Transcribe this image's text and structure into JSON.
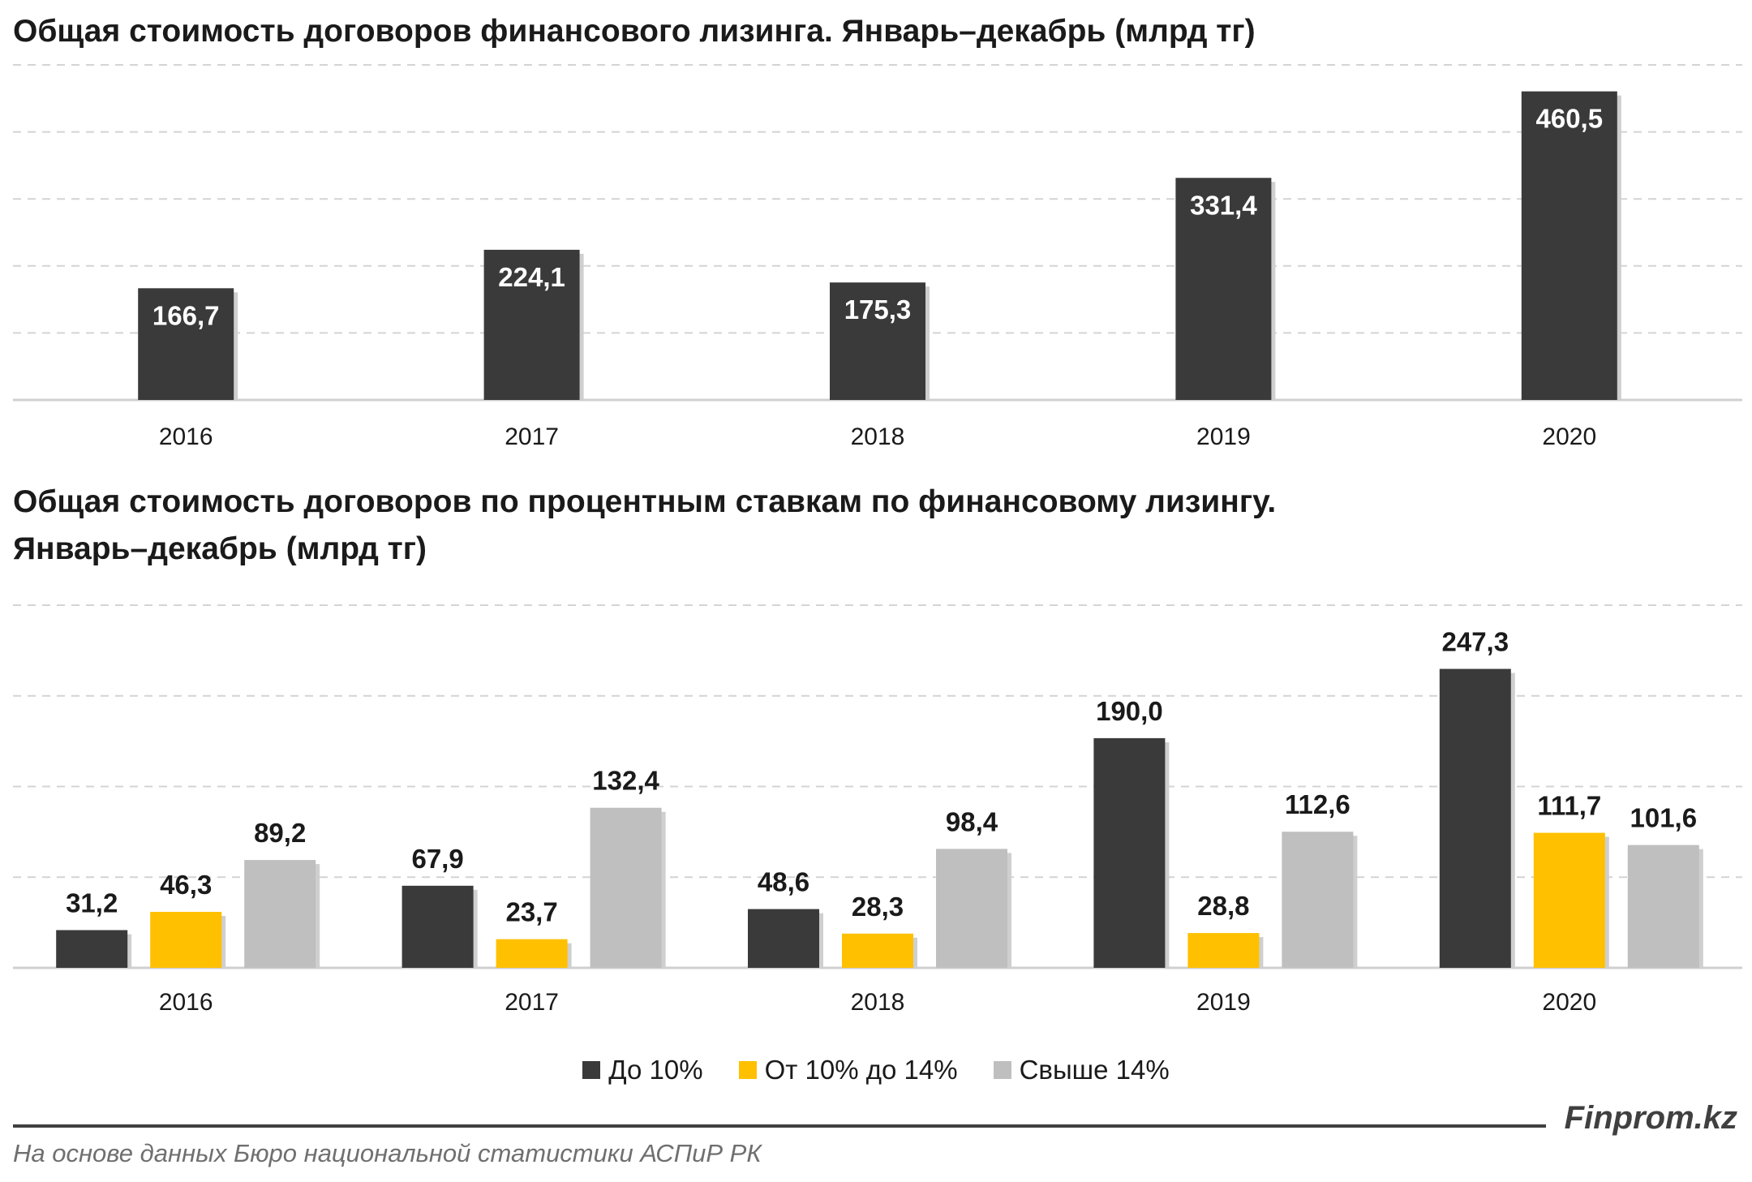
{
  "charts": {
    "top": {
      "title": "Общая стоимость договоров финансового лизинга. Январь–декабрь (млрд тг)"
    },
    "bottom": {
      "title_line1": "Общая стоимость договоров по процентным ставкам по финансовому лизингу.",
      "title_line2": "Январь–декабрь (млрд тг)"
    }
  },
  "legend": {
    "items": [
      {
        "label": "До 10%",
        "color": "#3a3a3a"
      },
      {
        "label": "От 10% до 14%",
        "color": "#ffc000"
      },
      {
        "label": "Свыше 14%",
        "color": "#bfbfbf"
      }
    ]
  },
  "footer": {
    "brand": "Finprom.kz",
    "source": "На основе данных Бюро национальной статистики АСПиР РК"
  },
  "chart_data": [
    {
      "type": "bar",
      "title": "Общая стоимость договоров финансового лизинга. Январь–декабрь (млрд тг)",
      "categories": [
        "2016",
        "2017",
        "2018",
        "2019",
        "2020"
      ],
      "values": [
        166.7,
        224.1,
        175.3,
        331.4,
        460.5
      ],
      "value_labels": [
        "166,7",
        "224,1",
        "175,3",
        "331,4",
        "460,5"
      ],
      "color": "#3a3a3a",
      "grid": true,
      "ylim": [
        0,
        500
      ]
    },
    {
      "type": "bar",
      "title": "Общая стоимость договоров по процентным ставкам по финансовому лизингу. Январь–декабрь (млрд тг)",
      "categories": [
        "2016",
        "2017",
        "2018",
        "2019",
        "2020"
      ],
      "series": [
        {
          "name": "До 10%",
          "color": "#3a3a3a",
          "values": [
            31.2,
            67.9,
            48.6,
            190.0,
            247.3
          ],
          "value_labels": [
            "31,2",
            "67,9",
            "48,6",
            "190,0",
            "247,3"
          ]
        },
        {
          "name": "От 10% до 14%",
          "color": "#ffc000",
          "values": [
            46.3,
            23.7,
            28.3,
            28.8,
            111.7
          ],
          "value_labels": [
            "46,3",
            "23,7",
            "28,3",
            "28,8",
            "111,7"
          ]
        },
        {
          "name": "Свыше 14%",
          "color": "#bfbfbf",
          "values": [
            89.2,
            132.4,
            98.4,
            112.6,
            101.6
          ],
          "value_labels": [
            "89,2",
            "132,4",
            "98,4",
            "112,6",
            "101,6"
          ]
        }
      ],
      "legend_position": "bottom",
      "grid": true,
      "ylim": [
        0,
        300
      ]
    }
  ]
}
